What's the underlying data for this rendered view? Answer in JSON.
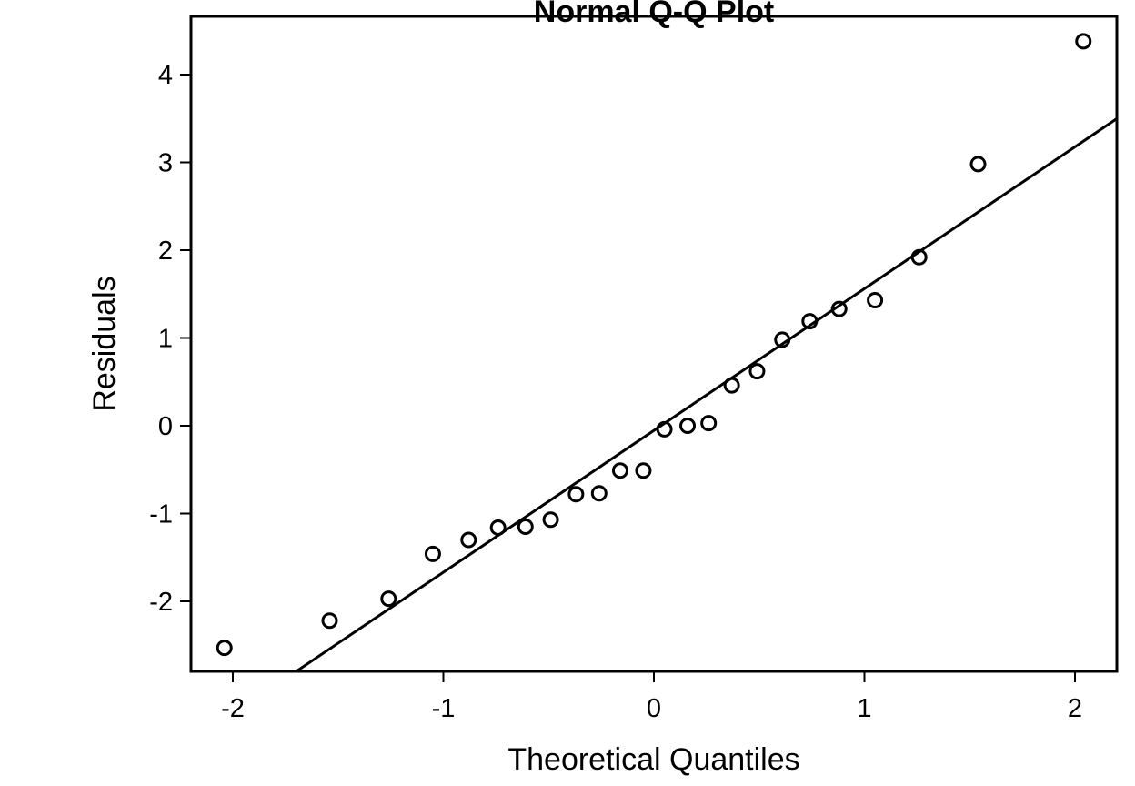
{
  "chart_data": {
    "type": "scatter",
    "title": "Normal Q-Q Plot",
    "xlabel": "Theoretical Quantiles",
    "ylabel": "Residuals",
    "xlim": [
      -2.2,
      2.2
    ],
    "ylim": [
      -2.8,
      4.7
    ],
    "x_ticks": [
      -2,
      -1,
      0,
      1,
      2
    ],
    "y_ticks": [
      -2,
      -1,
      0,
      1,
      2,
      3,
      4
    ],
    "x_tick_labels": [
      "-2",
      "-1",
      "0",
      "1",
      "2"
    ],
    "y_tick_labels": [
      "-2",
      "-1",
      "0",
      "1",
      "2",
      "3",
      "4"
    ],
    "grid": false,
    "series": [
      {
        "points": [
          {
            "x": -2.04,
            "y": -2.53
          },
          {
            "x": -1.54,
            "y": -2.22
          },
          {
            "x": -1.26,
            "y": -1.97
          },
          {
            "x": -1.05,
            "y": -1.46
          },
          {
            "x": -0.88,
            "y": -1.3
          },
          {
            "x": -0.74,
            "y": -1.16
          },
          {
            "x": -0.61,
            "y": -1.15
          },
          {
            "x": -0.49,
            "y": -1.07
          },
          {
            "x": -0.37,
            "y": -0.78
          },
          {
            "x": -0.26,
            "y": -0.77
          },
          {
            "x": -0.16,
            "y": -0.51
          },
          {
            "x": -0.05,
            "y": -0.51
          },
          {
            "x": 0.05,
            "y": -0.04
          },
          {
            "x": 0.16,
            "y": 0.0
          },
          {
            "x": 0.26,
            "y": 0.03
          },
          {
            "x": 0.37,
            "y": 0.46
          },
          {
            "x": 0.49,
            "y": 0.62
          },
          {
            "x": 0.61,
            "y": 0.98
          },
          {
            "x": 0.74,
            "y": 1.19
          },
          {
            "x": 0.88,
            "y": 1.33
          },
          {
            "x": 1.05,
            "y": 1.43
          },
          {
            "x": 1.26,
            "y": 1.92
          },
          {
            "x": 1.54,
            "y": 2.98
          },
          {
            "x": 2.04,
            "y": 4.38
          }
        ],
        "marker": "open-circle",
        "color": "#000000"
      }
    ],
    "reference_line": {
      "points": [
        [
          -1.7,
          -2.8
        ],
        [
          2.2,
          3.5
        ]
      ],
      "color": "#000000"
    }
  }
}
